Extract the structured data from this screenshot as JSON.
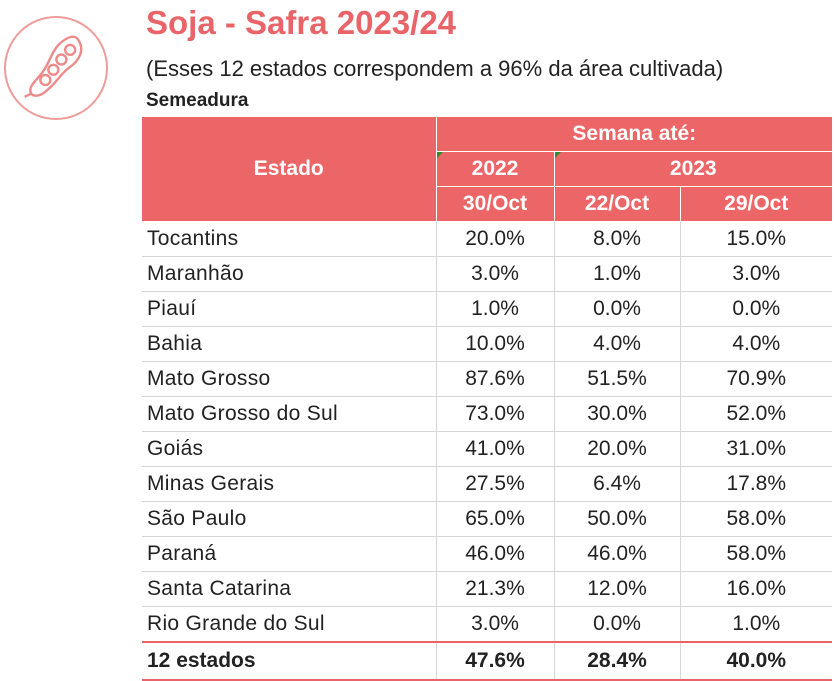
{
  "header": {
    "title": "Soja - Safra 2023/24",
    "subtitle": "(Esses 12 estados correspondem a 96% da área cultivada)",
    "section": "Semeadura",
    "logo_icon": "soybean-pod-icon",
    "accent_color": "#ec6567"
  },
  "table": {
    "col_estado": "Estado",
    "col_group": "Semana até:",
    "year_2022": "2022",
    "year_2023": "2023",
    "date_2022": "30/Oct",
    "date_2023a": "22/Oct",
    "date_2023b": "29/Oct",
    "rows": [
      {
        "estado": "Tocantins",
        "v2022": "20.0%",
        "v22oct": "8.0%",
        "v29oct": "15.0%"
      },
      {
        "estado": "Maranhão",
        "v2022": "3.0%",
        "v22oct": "1.0%",
        "v29oct": "3.0%"
      },
      {
        "estado": "Piauí",
        "v2022": "1.0%",
        "v22oct": "0.0%",
        "v29oct": "0.0%"
      },
      {
        "estado": "Bahia",
        "v2022": "10.0%",
        "v22oct": "4.0%",
        "v29oct": "4.0%"
      },
      {
        "estado": "Mato Grosso",
        "v2022": "87.6%",
        "v22oct": "51.5%",
        "v29oct": "70.9%"
      },
      {
        "estado": "Mato Grosso do Sul",
        "v2022": "73.0%",
        "v22oct": "30.0%",
        "v29oct": "52.0%"
      },
      {
        "estado": "Goiás",
        "v2022": "41.0%",
        "v22oct": "20.0%",
        "v29oct": "31.0%"
      },
      {
        "estado": "Minas Gerais",
        "v2022": "27.5%",
        "v22oct": "6.4%",
        "v29oct": "17.8%"
      },
      {
        "estado": "São Paulo",
        "v2022": "65.0%",
        "v22oct": "50.0%",
        "v29oct": "58.0%"
      },
      {
        "estado": "Paraná",
        "v2022": "46.0%",
        "v22oct": "46.0%",
        "v29oct": "58.0%"
      },
      {
        "estado": "Santa Catarina",
        "v2022": "21.3%",
        "v22oct": "12.0%",
        "v29oct": "16.0%"
      },
      {
        "estado": "Rio Grande do Sul",
        "v2022": "3.0%",
        "v22oct": "0.0%",
        "v29oct": "1.0%"
      }
    ],
    "total": {
      "estado": "12 estados",
      "v2022": "47.6%",
      "v22oct": "28.4%",
      "v29oct": "40.0%"
    }
  }
}
